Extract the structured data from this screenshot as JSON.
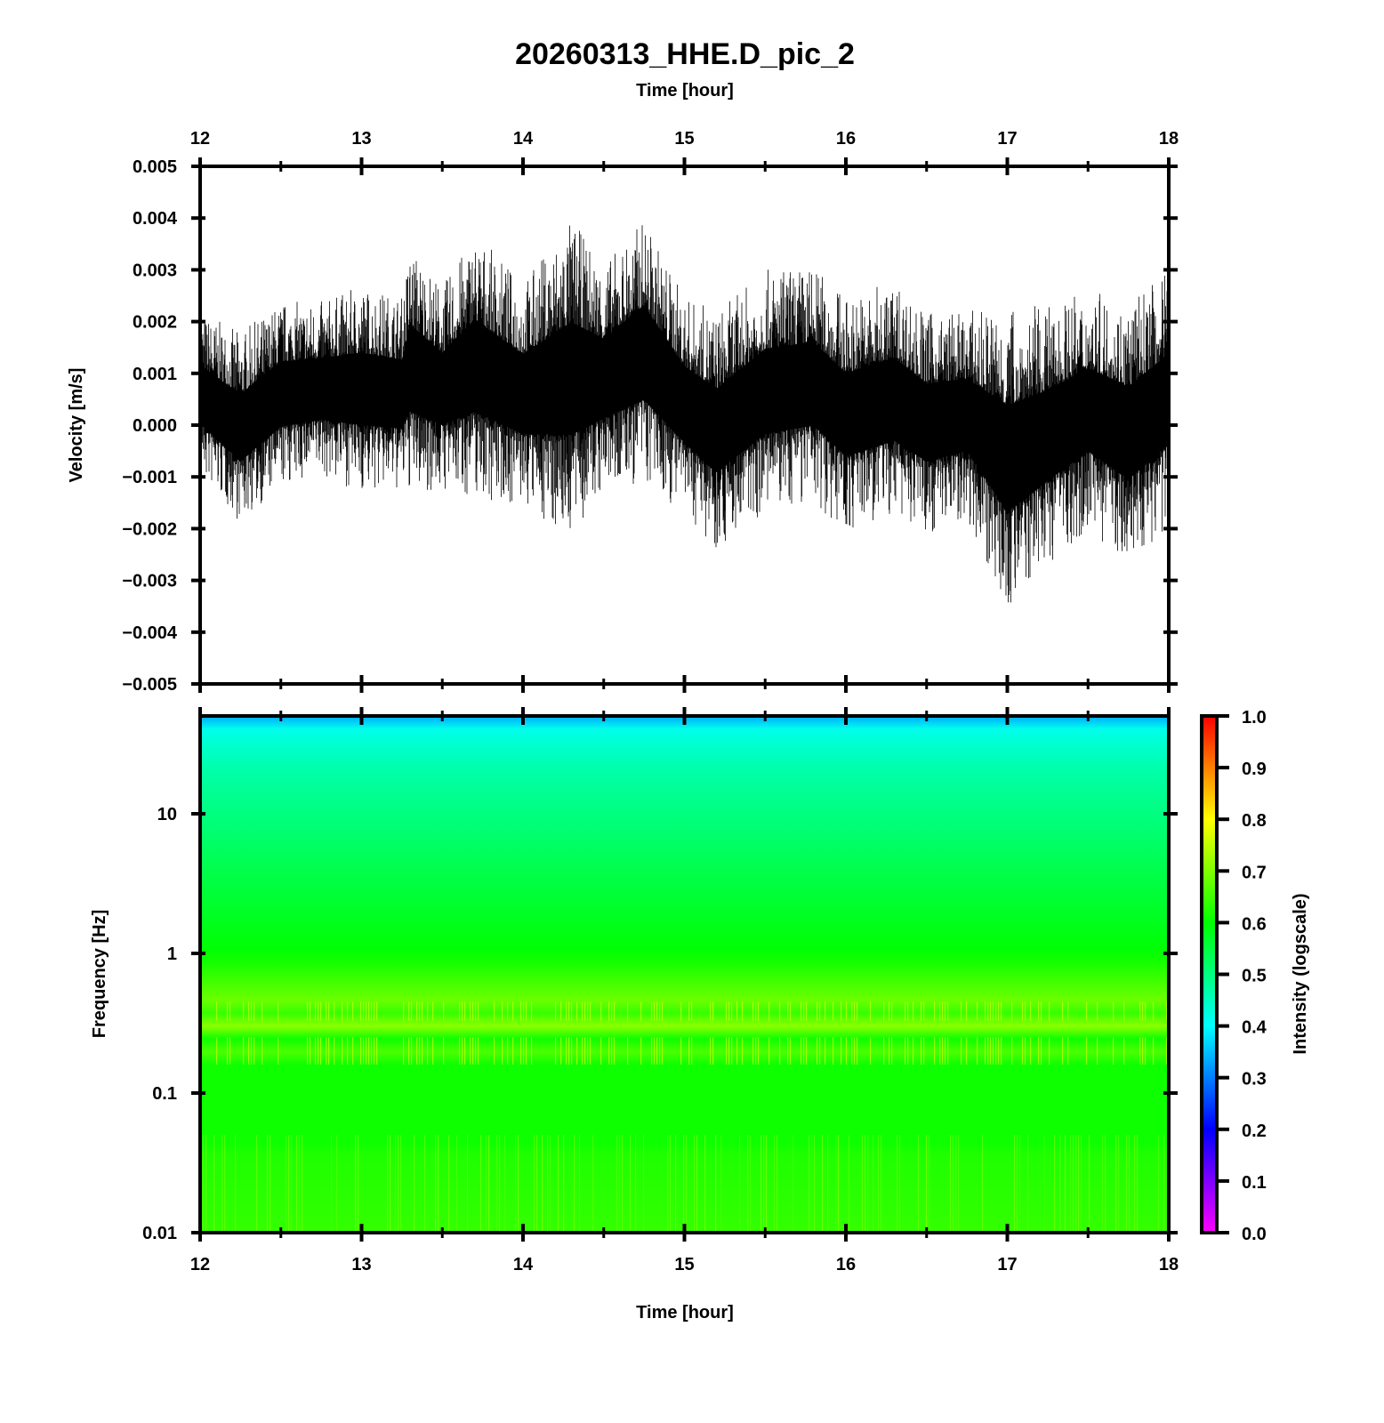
{
  "chart_data": [
    {
      "type": "line",
      "title": "20260313_HHE.D_pic_2",
      "xlabel": "Time [hour]",
      "ylabel": "Velocity [m/s]",
      "xlim": [
        12,
        18
      ],
      "ylim": [
        -0.005,
        0.005
      ],
      "xticks": [
        "12",
        "13",
        "14",
        "15",
        "16",
        "17",
        "18"
      ],
      "yticks": [
        "0.005",
        "0.004",
        "0.003",
        "0.002",
        "0.001",
        "0.000",
        "−0.001",
        "−0.002",
        "−0.003",
        "−0.004",
        "−0.005"
      ],
      "envelope_hours": [
        12.0,
        12.25,
        12.5,
        12.75,
        13.0,
        13.25,
        13.3,
        13.5,
        13.7,
        14.0,
        14.3,
        14.5,
        14.75,
        15.0,
        15.2,
        15.5,
        15.8,
        16.0,
        16.3,
        16.5,
        16.75,
        17.0,
        17.25,
        17.5,
        17.75,
        18.0
      ],
      "envelope_max": [
        0.0022,
        0.0018,
        0.0024,
        0.0024,
        0.0027,
        0.0025,
        0.0035,
        0.0027,
        0.0037,
        0.0028,
        0.004,
        0.0031,
        0.004,
        0.0025,
        0.0022,
        0.003,
        0.0031,
        0.0025,
        0.0028,
        0.0022,
        0.0022,
        0.0023,
        0.0023,
        0.0026,
        0.0024,
        0.003
      ],
      "envelope_min": [
        -0.001,
        -0.0019,
        -0.0012,
        -0.001,
        -0.0013,
        -0.0013,
        -0.0013,
        -0.0013,
        -0.0014,
        -0.0016,
        -0.0022,
        -0.0013,
        -0.0012,
        -0.0017,
        -0.0024,
        -0.0017,
        -0.0015,
        -0.0021,
        -0.0018,
        -0.0021,
        -0.0018,
        -0.0036,
        -0.0027,
        -0.002,
        -0.0027,
        -0.002
      ]
    },
    {
      "type": "heatmap",
      "xlabel": "Time [hour]",
      "ylabel": "Frequency [Hz]",
      "xlim": [
        12,
        18
      ],
      "ylim": [
        0.01,
        50
      ],
      "yscale": "log",
      "xticks": [
        "12",
        "13",
        "14",
        "15",
        "16",
        "17",
        "18"
      ],
      "yticks": [
        "10",
        "1",
        "0.1",
        "0.01"
      ],
      "intensity_profile_freq_hz": [
        50,
        40,
        20,
        10,
        1,
        0.4,
        0.2,
        0.05,
        0.01
      ],
      "intensity_profile_value": [
        0.33,
        0.42,
        0.47,
        0.5,
        0.6,
        0.7,
        0.72,
        0.62,
        0.64
      ],
      "colorbar": {
        "label": "Intensity (logscale)",
        "range": [
          0,
          1
        ],
        "ticks": [
          "1.0",
          "0.9",
          "0.8",
          "0.7",
          "0.6",
          "0.5",
          "0.4",
          "0.3",
          "0.2",
          "0.1",
          "0.0"
        ]
      }
    }
  ]
}
